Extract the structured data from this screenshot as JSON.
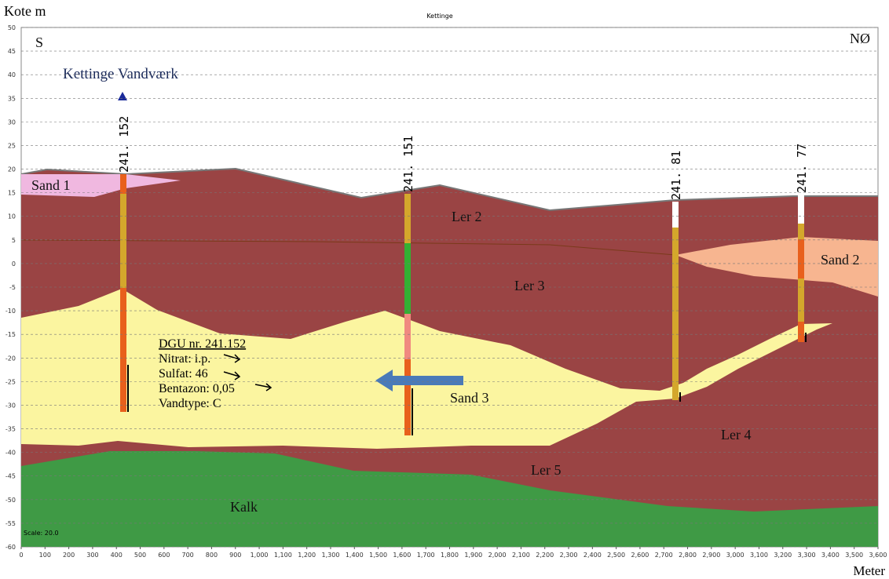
{
  "chart_data": {
    "type": "cross-section",
    "title": "Kettinge",
    "y_axis_label": "Kote m",
    "x_axis_label": "Meter",
    "xlim": [
      0,
      3600
    ],
    "ylim": [
      -60,
      50
    ],
    "grid": true,
    "yticks": [
      50,
      45,
      40,
      35,
      30,
      25,
      20,
      15,
      10,
      5,
      0,
      -5,
      -10,
      -15,
      -20,
      -25,
      -30,
      -35,
      -40,
      -45,
      -50,
      -55,
      -60
    ],
    "xticks": [
      0,
      100,
      200,
      300,
      400,
      500,
      600,
      700,
      800,
      900,
      {
        "value": 1000,
        "label": "1,000"
      },
      {
        "value": 1100,
        "label": "1,100"
      },
      {
        "value": 1200,
        "label": "1,200"
      },
      {
        "value": 1300,
        "label": "1,300"
      },
      {
        "value": 1400,
        "label": "1,400"
      },
      {
        "value": 1500,
        "label": "1,500"
      },
      {
        "value": 1600,
        "label": "1,600"
      },
      {
        "value": 1700,
        "label": "1,700"
      },
      {
        "value": 1800,
        "label": "1,800"
      },
      {
        "value": 1900,
        "label": "1,900"
      },
      {
        "value": 2000,
        "label": "2,000"
      },
      {
        "value": 2100,
        "label": "2,100"
      },
      {
        "value": 2200,
        "label": "2,200"
      },
      {
        "value": 2300,
        "label": "2,300"
      },
      {
        "value": 2400,
        "label": "2,400"
      },
      {
        "value": 2500,
        "label": "2,500"
      },
      {
        "value": 2600,
        "label": "2,600"
      },
      {
        "value": 2700,
        "label": "2,700"
      },
      {
        "value": 2800,
        "label": "2,800"
      },
      {
        "value": 2900,
        "label": "2,900"
      },
      {
        "value": 3000,
        "label": "3,000"
      },
      {
        "value": 3100,
        "label": "3,100"
      },
      {
        "value": 3200,
        "label": "3,200"
      },
      {
        "value": 3300,
        "label": "3,300"
      },
      {
        "value": 3400,
        "label": "3,400"
      },
      {
        "value": 3500,
        "label": "3,500"
      },
      {
        "value": 3600,
        "label": "3,600"
      }
    ],
    "direction_left": "S",
    "direction_right": "NØ",
    "site": "Kettinge Vandværk",
    "scale": "Scale: 20.0",
    "layers": [
      "Sand 1",
      "Ler 2",
      "Ler 3",
      "Sand 2",
      "Sand 3",
      "Ler 4",
      "Ler 5",
      "Kalk"
    ],
    "wells": [
      "241. 152",
      "241. 151",
      "241. 81",
      "241. 77"
    ],
    "annotation": [
      "DGU nr. 241.152",
      "Nitrat: i.p.",
      "Sulfat: 46",
      "Bentazon: 0,05",
      "Vandtype: C"
    ]
  }
}
